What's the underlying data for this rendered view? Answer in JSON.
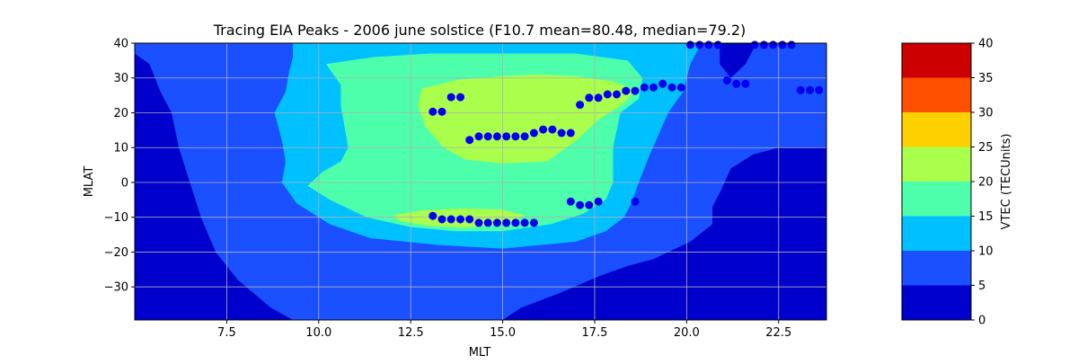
{
  "chart_data": {
    "type": "contour",
    "title": "Tracing EIA Peaks - 2006 june solstice (F10.7 mean=80.48, median=79.2)",
    "xlabel": "MLT",
    "ylabel": "MLAT",
    "xlim": [
      5.0,
      23.8
    ],
    "ylim": [
      -39.5,
      40
    ],
    "x_ticks": [
      7.5,
      10.0,
      12.5,
      15.0,
      17.5,
      20.0,
      22.5
    ],
    "x_tick_labels": [
      "7.5",
      "10.0",
      "12.5",
      "15.0",
      "17.5",
      "20.0",
      "22.5"
    ],
    "y_ticks": [
      -30,
      -20,
      -10,
      0,
      10,
      20,
      30,
      40
    ],
    "y_tick_labels": [
      "−30",
      "−20",
      "−10",
      "0",
      "10",
      "20",
      "30",
      "40"
    ],
    "grid": true,
    "colorbar": {
      "label": "VTEC (TECUnits)",
      "levels": [
        0,
        5,
        10,
        15,
        20,
        25,
        30,
        35,
        40
      ],
      "tick_labels": [
        "0",
        "5",
        "10",
        "15",
        "20",
        "25",
        "30",
        "35",
        "40"
      ],
      "colors": [
        "#0000cd",
        "#1a50ff",
        "#00c0ff",
        "#4dffaa",
        "#aaff4d",
        "#ffd000",
        "#ff5000",
        "#cd0000"
      ]
    },
    "contour_fills": [
      {
        "level": "5-10",
        "color": "#1a50ff",
        "polygon": [
          [
            5.0,
            40
          ],
          [
            23.8,
            40
          ],
          [
            23.8,
            10
          ],
          [
            23.6,
            10
          ],
          [
            22.5,
            10
          ],
          [
            21.8,
            8
          ],
          [
            21.2,
            4
          ],
          [
            20.9,
            -3
          ],
          [
            20.7,
            -7
          ],
          [
            20.7,
            -12
          ],
          [
            20.1,
            -17
          ],
          [
            19.1,
            -22
          ],
          [
            18.4,
            -24
          ],
          [
            17.6,
            -27
          ],
          [
            16.5,
            -32
          ],
          [
            15.5,
            -36
          ],
          [
            15.0,
            -39.5
          ],
          [
            9.3,
            -39.5
          ],
          [
            8.7,
            -36
          ],
          [
            7.8,
            -28
          ],
          [
            7.2,
            -20
          ],
          [
            6.8,
            -10
          ],
          [
            6.5,
            0
          ],
          [
            6.2,
            10
          ],
          [
            6.0,
            20
          ],
          [
            5.7,
            26
          ],
          [
            5.4,
            34
          ],
          [
            5.0,
            37
          ]
        ]
      },
      {
        "level": "10-15",
        "color": "#00c0ff",
        "polygon": [
          [
            9.3,
            40
          ],
          [
            20.4,
            40
          ],
          [
            20.1,
            34
          ],
          [
            19.9,
            26
          ],
          [
            19.5,
            20
          ],
          [
            19.0,
            8
          ],
          [
            18.7,
            0
          ],
          [
            18.5,
            -6
          ],
          [
            18.3,
            -10
          ],
          [
            17.8,
            -14
          ],
          [
            17.0,
            -17
          ],
          [
            15.0,
            -19
          ],
          [
            13.3,
            -18
          ],
          [
            11.4,
            -16
          ],
          [
            10.3,
            -12
          ],
          [
            9.4,
            -6
          ],
          [
            9.0,
            0
          ],
          [
            9.1,
            6
          ],
          [
            9.0,
            12
          ],
          [
            8.8,
            20
          ],
          [
            9.1,
            26
          ],
          [
            9.2,
            32
          ],
          [
            9.3,
            36
          ]
        ]
      },
      {
        "level": "15-20",
        "color": "#4dffaa",
        "polygon": [
          [
            10.2,
            34
          ],
          [
            11.5,
            36
          ],
          [
            13.0,
            37
          ],
          [
            15.0,
            37
          ],
          [
            17.0,
            37
          ],
          [
            18.4,
            35
          ],
          [
            18.8,
            30
          ],
          [
            18.7,
            24
          ],
          [
            18.2,
            20
          ],
          [
            18.0,
            10
          ],
          [
            18.0,
            0
          ],
          [
            17.8,
            -5
          ],
          [
            17.2,
            -9
          ],
          [
            16.3,
            -12
          ],
          [
            15.0,
            -14
          ],
          [
            13.7,
            -14
          ],
          [
            12.5,
            -12.8
          ],
          [
            11.3,
            -10
          ],
          [
            10.3,
            -5
          ],
          [
            9.7,
            -1
          ],
          [
            10.1,
            3
          ],
          [
            10.6,
            6
          ],
          [
            10.8,
            10
          ],
          [
            10.7,
            16
          ],
          [
            10.6,
            22
          ],
          [
            10.6,
            28
          ]
        ]
      },
      {
        "level": "20-25",
        "color": "#aaff4d",
        "polygon": [
          [
            12.8,
            27
          ],
          [
            13.8,
            29.5
          ],
          [
            15.0,
            30.5
          ],
          [
            16.0,
            31
          ],
          [
            17.0,
            30.5
          ],
          [
            18.0,
            29
          ],
          [
            18.5,
            27
          ],
          [
            18.5,
            25
          ],
          [
            18.2,
            22
          ],
          [
            17.6,
            18
          ],
          [
            17.0,
            12
          ],
          [
            16.2,
            6
          ],
          [
            15.0,
            5.5
          ],
          [
            14.0,
            6.5
          ],
          [
            13.4,
            10
          ],
          [
            12.9,
            16
          ],
          [
            12.7,
            22
          ]
        ]
      },
      {
        "level": "20-25",
        "color": "#aaff4d",
        "polygon": [
          [
            12.0,
            -9.5
          ],
          [
            12.8,
            -8
          ],
          [
            14.0,
            -7.5
          ],
          [
            15.0,
            -7.8
          ],
          [
            15.6,
            -9.5
          ],
          [
            15.2,
            -11.5
          ],
          [
            14.0,
            -13
          ],
          [
            13.0,
            -12.5
          ],
          [
            12.2,
            -11
          ]
        ]
      },
      {
        "level": "0-5",
        "color": "#0000cd",
        "polygon": [
          [
            20.9,
            40
          ],
          [
            21.9,
            40
          ],
          [
            21.6,
            34
          ],
          [
            21.2,
            30
          ],
          [
            20.9,
            34
          ]
        ]
      }
    ],
    "peaks": [
      {
        "x": 13.1,
        "y": 20.3
      },
      {
        "x": 13.35,
        "y": 20.3
      },
      {
        "x": 13.6,
        "y": 24.5
      },
      {
        "x": 13.85,
        "y": 24.5
      },
      {
        "x": 14.1,
        "y": 12.2
      },
      {
        "x": 14.35,
        "y": 13.2
      },
      {
        "x": 14.6,
        "y": 13.2
      },
      {
        "x": 14.85,
        "y": 13.2
      },
      {
        "x": 15.1,
        "y": 13.2
      },
      {
        "x": 15.35,
        "y": 13.2
      },
      {
        "x": 15.6,
        "y": 13.2
      },
      {
        "x": 15.85,
        "y": 14.2
      },
      {
        "x": 16.1,
        "y": 15.2
      },
      {
        "x": 16.35,
        "y": 15.2
      },
      {
        "x": 16.6,
        "y": 14.2
      },
      {
        "x": 16.85,
        "y": 14.2
      },
      {
        "x": 17.1,
        "y": 22.3
      },
      {
        "x": 17.35,
        "y": 24.3
      },
      {
        "x": 17.6,
        "y": 24.3
      },
      {
        "x": 17.85,
        "y": 25.3
      },
      {
        "x": 18.1,
        "y": 25.3
      },
      {
        "x": 18.35,
        "y": 26.3
      },
      {
        "x": 18.6,
        "y": 26.3
      },
      {
        "x": 18.85,
        "y": 27.3
      },
      {
        "x": 19.1,
        "y": 27.3
      },
      {
        "x": 19.35,
        "y": 28.3
      },
      {
        "x": 19.6,
        "y": 27.3
      },
      {
        "x": 19.85,
        "y": 27.3
      },
      {
        "x": 20.1,
        "y": 39.5
      },
      {
        "x": 20.35,
        "y": 39.5
      },
      {
        "x": 20.6,
        "y": 39.5
      },
      {
        "x": 20.85,
        "y": 39.5
      },
      {
        "x": 21.1,
        "y": 29.3
      },
      {
        "x": 21.35,
        "y": 28.3
      },
      {
        "x": 21.6,
        "y": 28.3
      },
      {
        "x": 21.85,
        "y": 39.5
      },
      {
        "x": 22.1,
        "y": 39.5
      },
      {
        "x": 22.35,
        "y": 39.5
      },
      {
        "x": 22.6,
        "y": 39.5
      },
      {
        "x": 22.85,
        "y": 39.5
      },
      {
        "x": 23.1,
        "y": 26.5
      },
      {
        "x": 23.35,
        "y": 26.5
      },
      {
        "x": 23.6,
        "y": 26.5
      },
      {
        "x": 13.1,
        "y": -9.6
      },
      {
        "x": 13.35,
        "y": -10.6
      },
      {
        "x": 13.6,
        "y": -10.6
      },
      {
        "x": 13.85,
        "y": -10.6
      },
      {
        "x": 14.1,
        "y": -10.6
      },
      {
        "x": 14.35,
        "y": -11.6
      },
      {
        "x": 14.6,
        "y": -11.6
      },
      {
        "x": 14.85,
        "y": -11.6
      },
      {
        "x": 15.1,
        "y": -11.6
      },
      {
        "x": 15.35,
        "y": -11.6
      },
      {
        "x": 15.6,
        "y": -11.6
      },
      {
        "x": 15.85,
        "y": -11.6
      },
      {
        "x": 16.85,
        "y": -5.5
      },
      {
        "x": 17.1,
        "y": -6.5
      },
      {
        "x": 17.35,
        "y": -6.5
      },
      {
        "x": 17.6,
        "y": -5.5
      },
      {
        "x": 18.6,
        "y": -5.5
      }
    ],
    "peak_color": "#0000ee"
  }
}
